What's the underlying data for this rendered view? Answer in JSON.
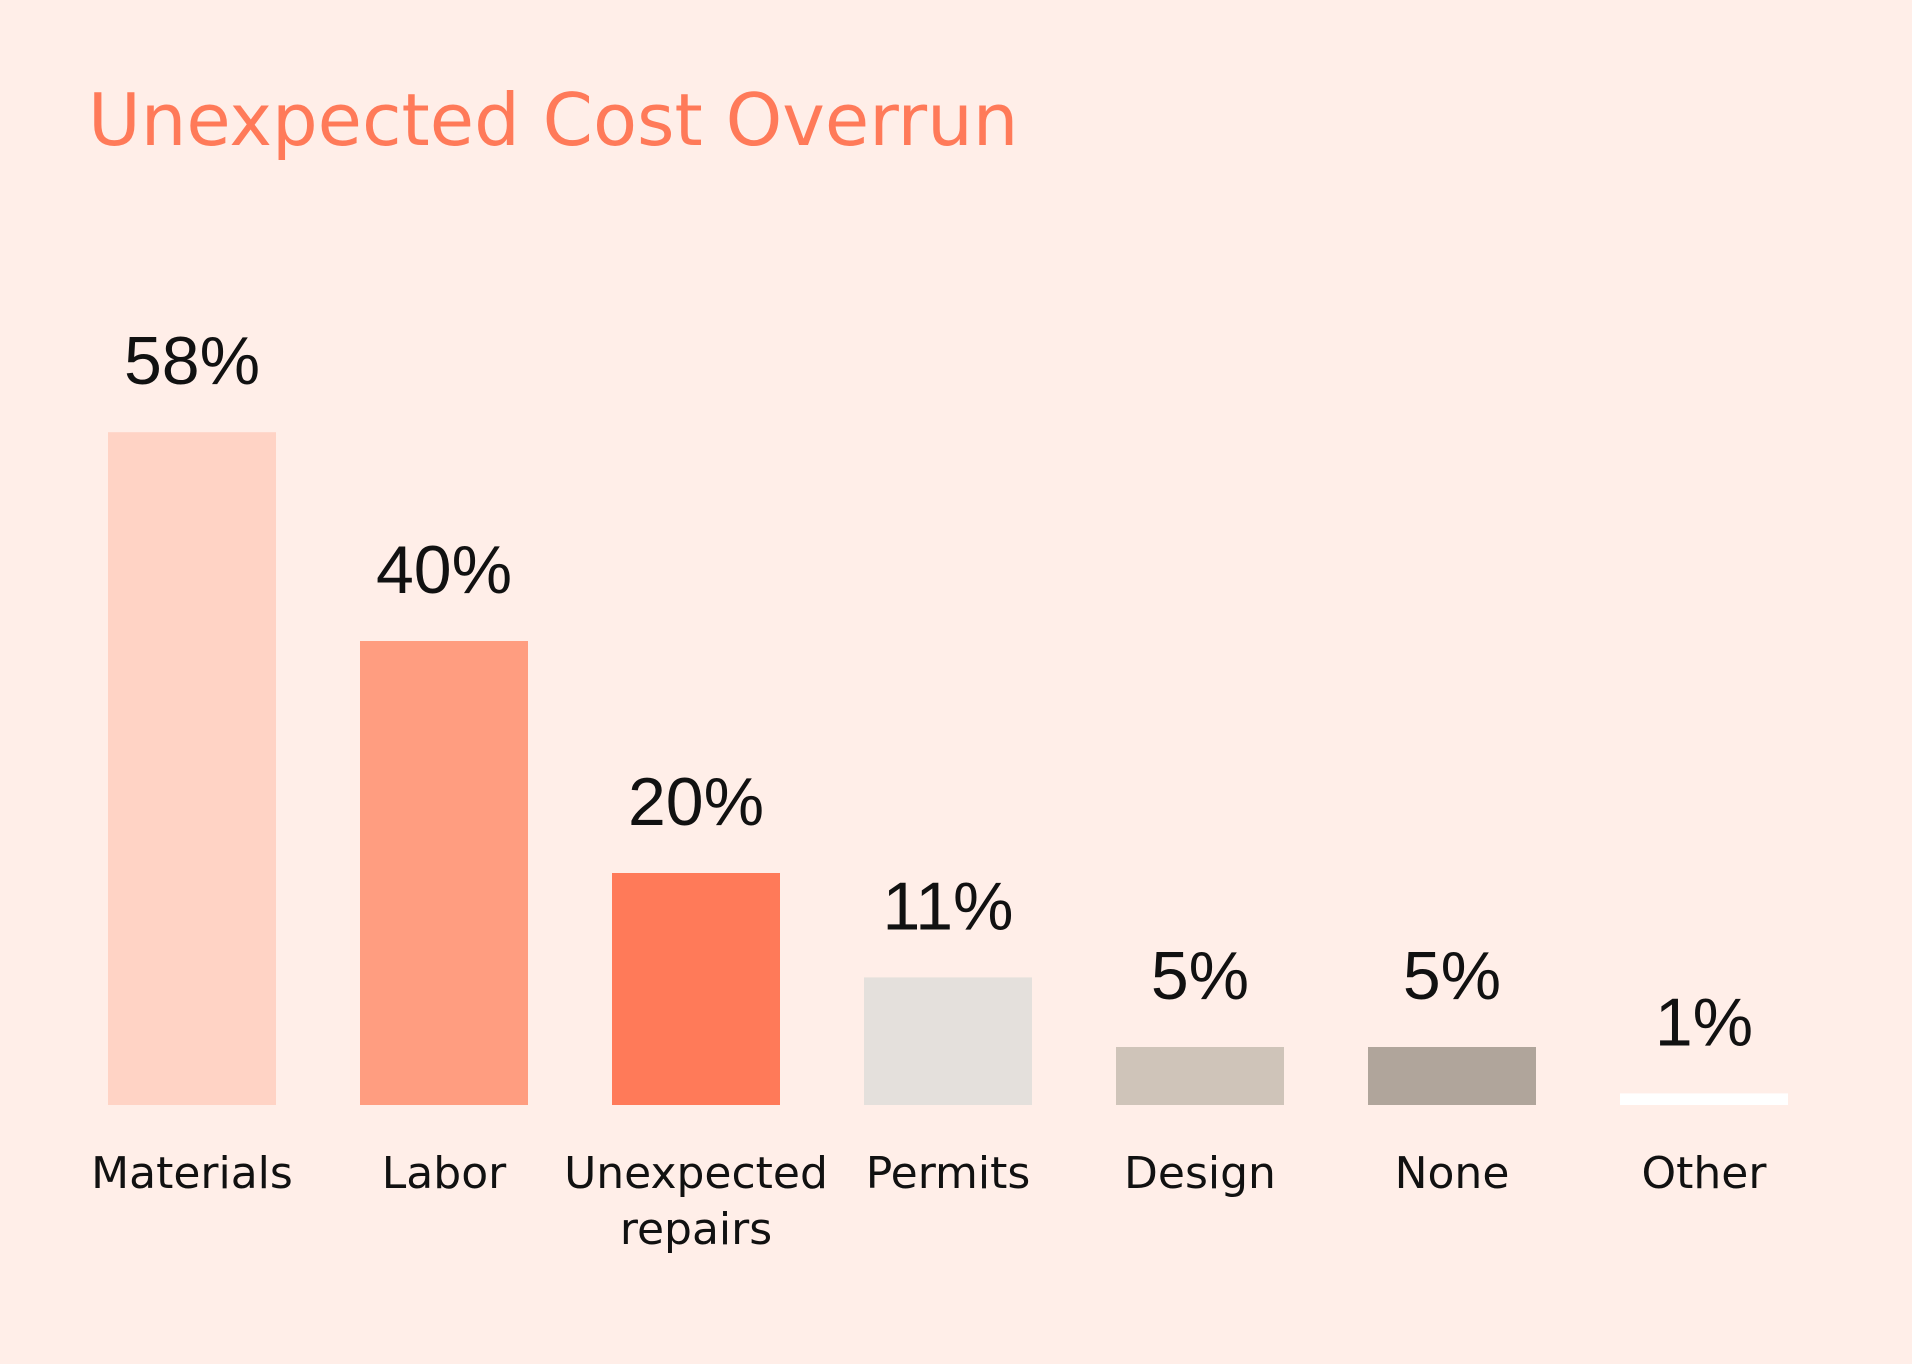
{
  "chart_data": {
    "type": "bar",
    "title": "Unexpected Cost Overrun",
    "xlabel": "",
    "ylabel": "",
    "value_suffix": "%",
    "categories": [
      "Materials",
      "Labor",
      "Unexpected repairs",
      "Permits",
      "Design",
      "None",
      "Other"
    ],
    "category_lines": [
      [
        "Materials"
      ],
      [
        "Labor"
      ],
      [
        "Unexpected",
        "repairs"
      ],
      [
        "Permits"
      ],
      [
        "Design"
      ],
      [
        "None"
      ],
      [
        "Other"
      ]
    ],
    "values": [
      58,
      40,
      20,
      11,
      5,
      5,
      1
    ],
    "value_labels": [
      "58%",
      "40%",
      "20%",
      "11%",
      "5%",
      "5%",
      "1%"
    ],
    "colors": [
      "#FFD3C5",
      "#FF9D80",
      "#FF7A59",
      "#E4E0DC",
      "#CFC4B9",
      "#B0A59B",
      "#FFFFFF"
    ],
    "ylim": [
      0,
      58
    ],
    "grid": false,
    "legend": "none"
  },
  "colors": {
    "background": "#FFEEE8",
    "title": "#FF7A59",
    "text": "#111111"
  }
}
